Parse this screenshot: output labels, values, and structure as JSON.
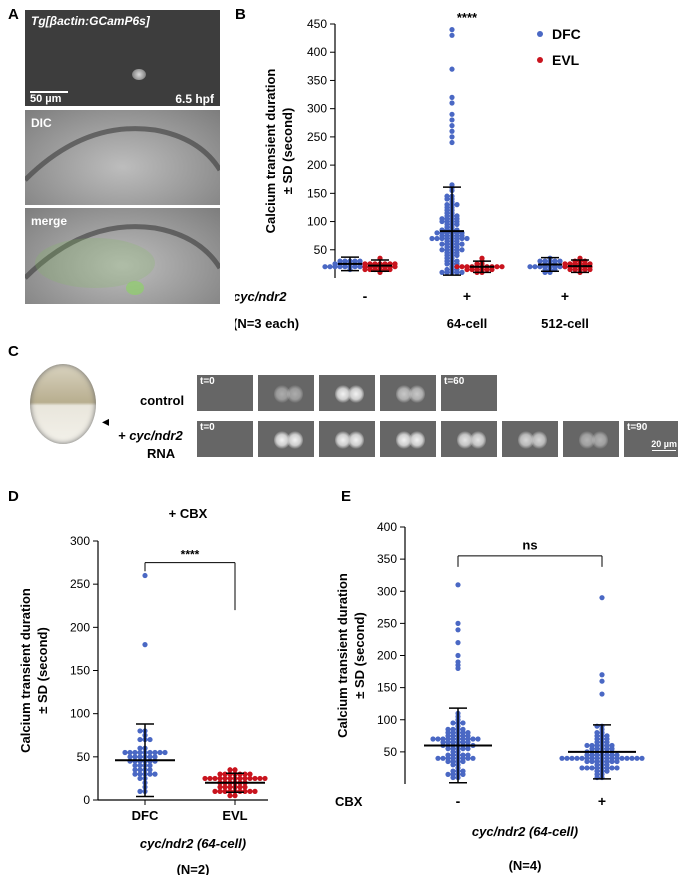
{
  "panel_letters": {
    "a": "A",
    "b": "B",
    "c": "C",
    "d": "D",
    "e": "E"
  },
  "panel_a": {
    "title": "Tg[βactin:GCamP6s]",
    "scale": "50 µm",
    "stage": "6.5 hpf",
    "dic": "DIC",
    "merge": "merge"
  },
  "panel_c": {
    "control": "control",
    "arrow": "◂",
    "treated_line1": "+ cyc/ndr2",
    "treated_line2": "RNA",
    "control_start": "t=0",
    "control_end": "t=60",
    "treated_start": "t=0",
    "treated_end": "t=90",
    "scale": "20 µm"
  },
  "colors": {
    "dfc": "#4a68c4",
    "evl": "#c9141e"
  },
  "chart_data": [
    {
      "panel": "B",
      "type": "scatter",
      "ylabel": [
        "Calcium transient duration",
        "± SD (second)"
      ],
      "ylim": [
        0,
        450
      ],
      "yticks": [
        50,
        100,
        150,
        200,
        250,
        300,
        350,
        400,
        450
      ],
      "legend": [
        {
          "name": "DFC",
          "color": "#4a68c4"
        },
        {
          "name": "EVL",
          "color": "#c9141e"
        }
      ],
      "legend_position": "top-right",
      "significance": "****",
      "row_label": "cyc/ndr2",
      "n_label": "(N=3 each)",
      "groups": [
        {
          "sign": "-",
          "label": "",
          "dfc": {
            "mean": 25,
            "sd": 12
          },
          "evl": {
            "mean": 22,
            "sd": 10
          }
        },
        {
          "sign": "+",
          "label": "64-cell",
          "dfc": {
            "mean": 83,
            "sd": 78
          },
          "evl": {
            "mean": 20,
            "sd": 10
          }
        },
        {
          "sign": "+",
          "label": "512-cell",
          "dfc": {
            "mean": 24,
            "sd": 12
          },
          "evl": {
            "mean": 21,
            "sd": 11
          }
        }
      ],
      "dfc_64_outliers": [
        440,
        430,
        370,
        320,
        310,
        290,
        280,
        270,
        260,
        250,
        240
      ]
    },
    {
      "panel": "D",
      "type": "scatter",
      "title": "+ CBX",
      "ylabel": [
        "Calcium transient duration",
        "± SD (second)"
      ],
      "ylim": [
        0,
        300
      ],
      "yticks": [
        0,
        50,
        100,
        150,
        200,
        250,
        300
      ],
      "categories": [
        "DFC",
        "EVL"
      ],
      "means": [
        46,
        20
      ],
      "sd": [
        42,
        11
      ],
      "significance": "****",
      "xlabel": "cyc/ndr2 (64-cell)",
      "n_label": "(N=2)",
      "outliers": [
        260,
        180
      ]
    },
    {
      "panel": "E",
      "type": "scatter",
      "ylabel": [
        "Calcium transient duration",
        "± SD (second)"
      ],
      "ylim": [
        0,
        400
      ],
      "yticks": [
        50,
        100,
        150,
        200,
        250,
        300,
        350,
        400
      ],
      "categories": [
        "-",
        "+"
      ],
      "row_label": "CBX",
      "means": [
        60,
        50
      ],
      "sd": [
        58,
        42
      ],
      "significance": "ns",
      "xlabel": "cyc/ndr2 (64-cell)",
      "n_label": "(N=4)",
      "outliers": [
        [
          310,
          250,
          240,
          220,
          200,
          190,
          185,
          180
        ],
        [
          290,
          170,
          160,
          140
        ]
      ]
    }
  ]
}
